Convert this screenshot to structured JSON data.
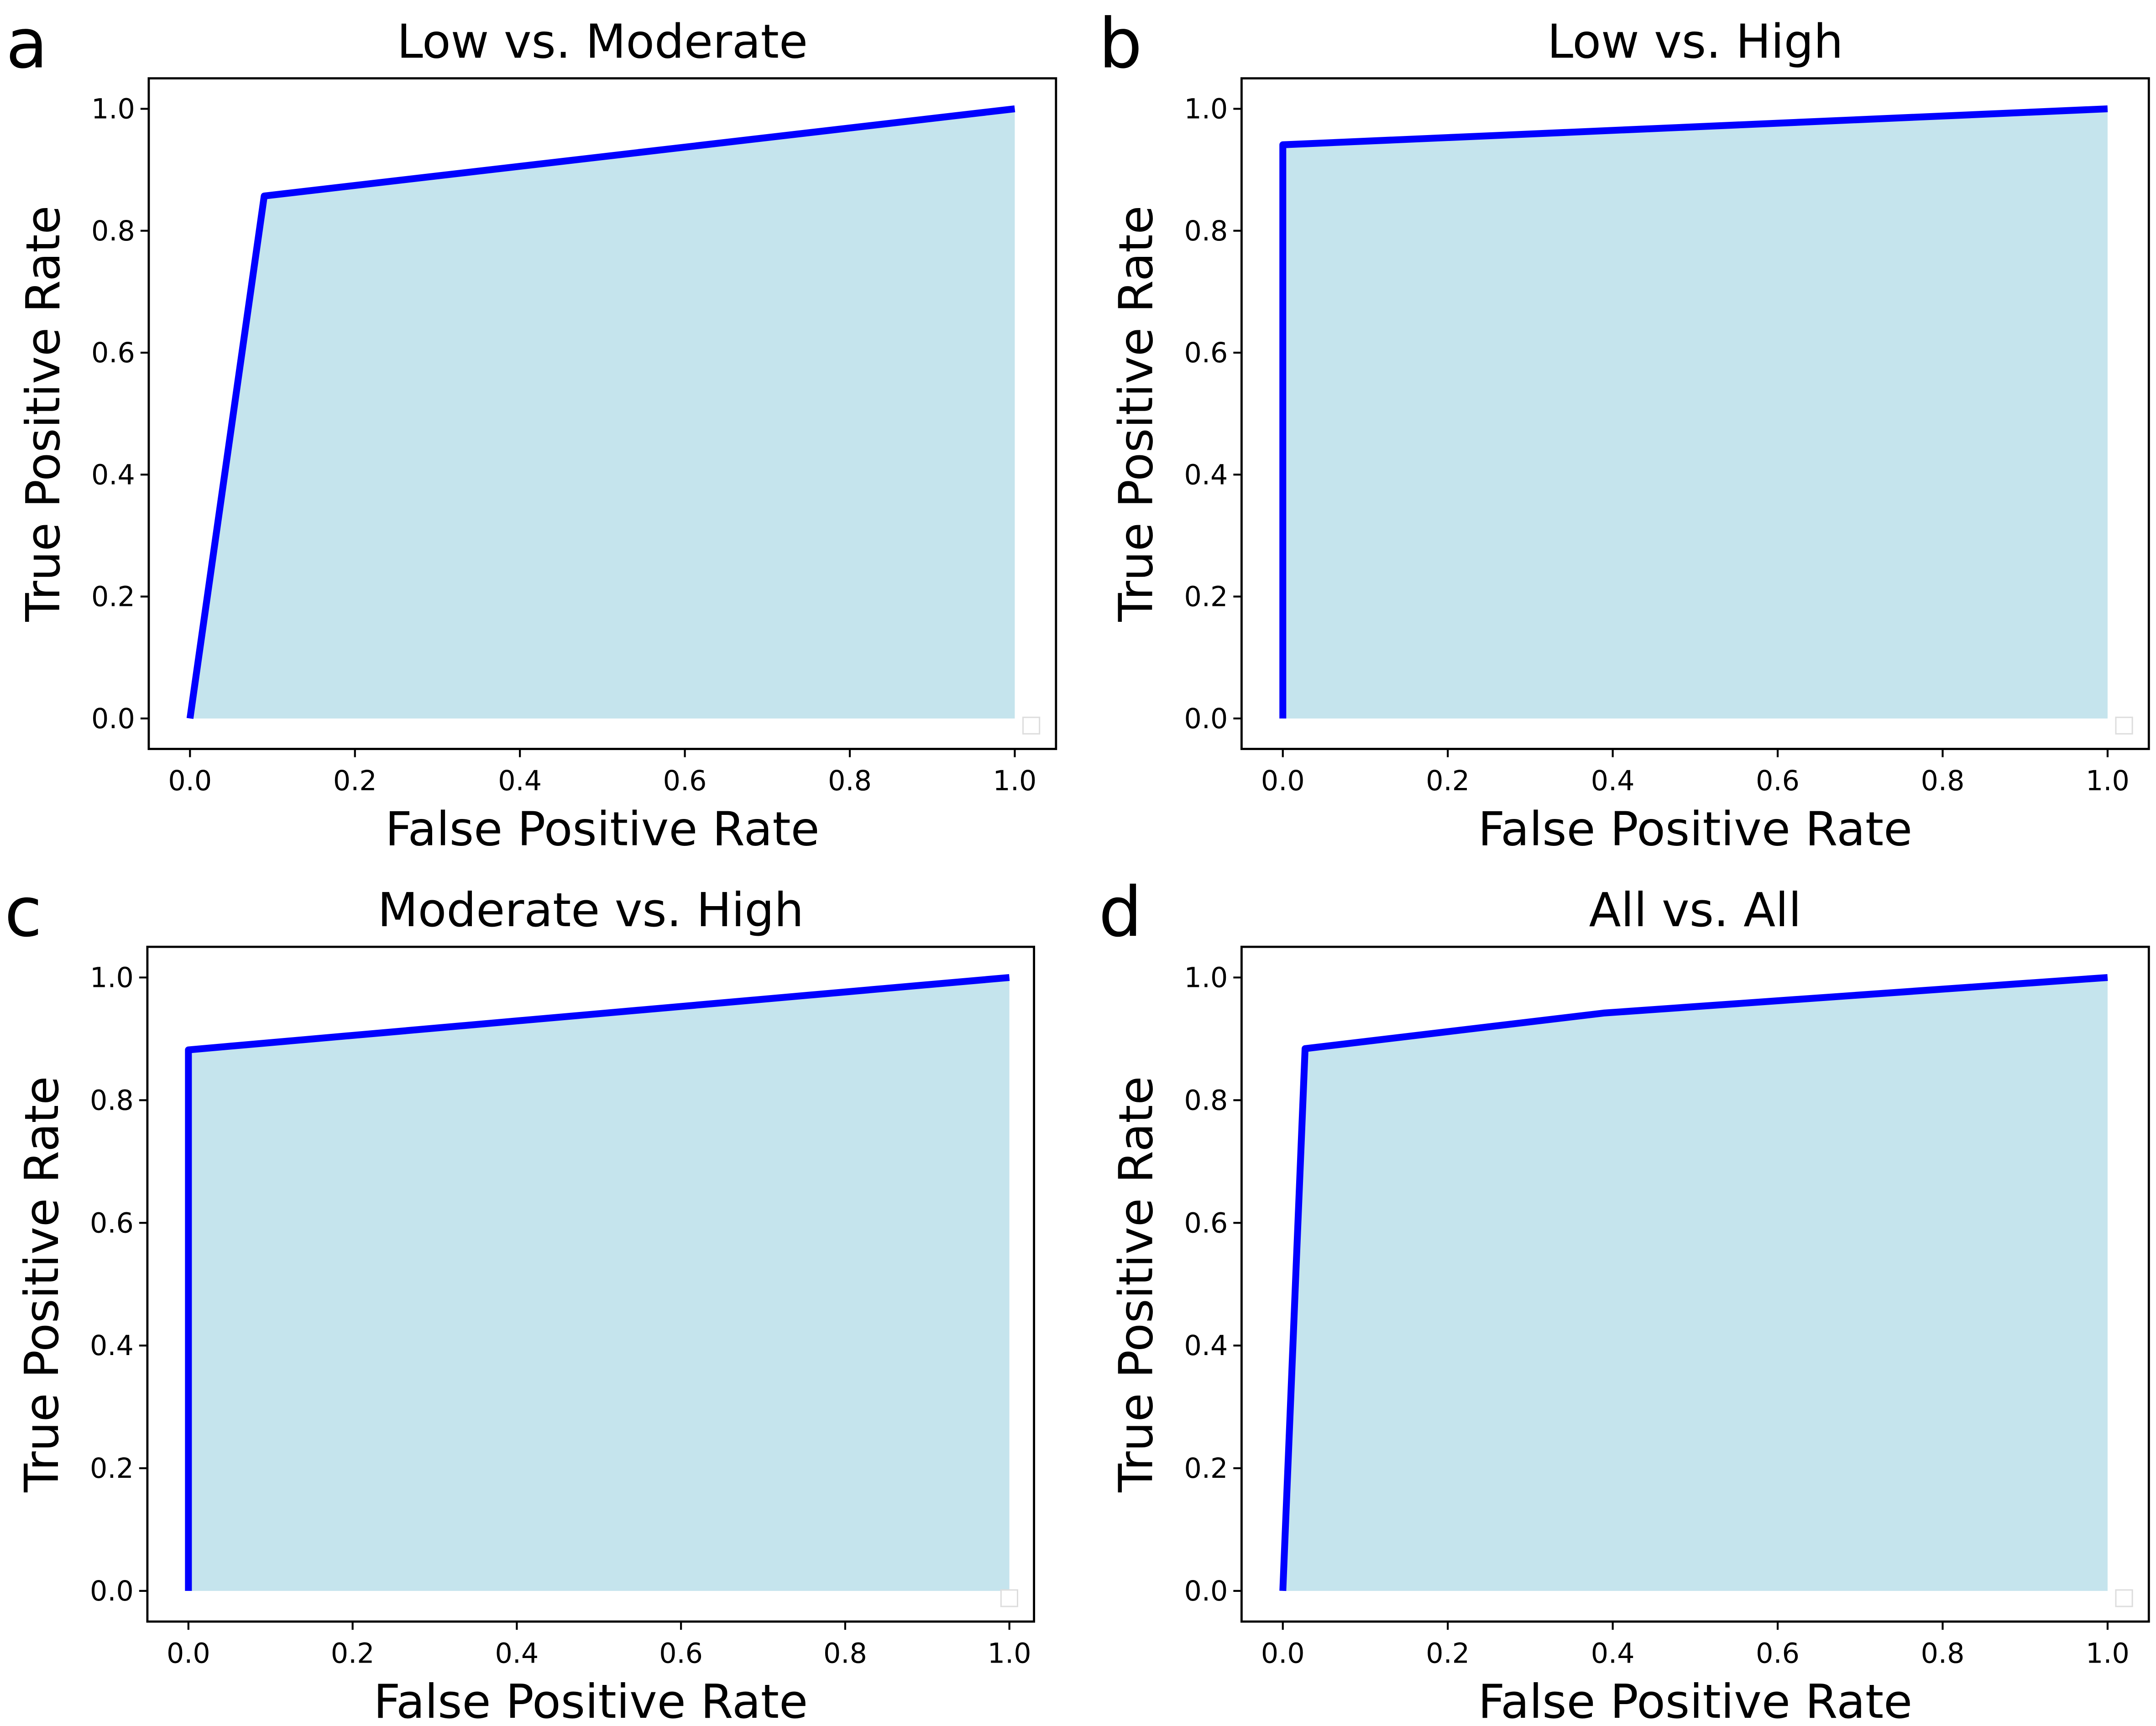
{
  "chart_data": [
    {
      "panel_label": "a",
      "type": "area",
      "title": "Low vs. Moderate",
      "xlabel": "False Positive Rate",
      "ylabel": "True Positive Rate",
      "x": [
        0.0,
        0.09,
        1.0
      ],
      "y": [
        0.0,
        0.857,
        1.0
      ],
      "xlim": [
        -0.05,
        1.05
      ],
      "ylim": [
        -0.05,
        1.05
      ],
      "xticks": [
        "0.0",
        "0.2",
        "0.4",
        "0.6",
        "0.8",
        "1.0"
      ],
      "yticks": [
        "0.0",
        "0.2",
        "0.4",
        "0.6",
        "0.8",
        "1.0"
      ],
      "grid": false,
      "legend": "bottom-right (empty)",
      "line_color": "#0000ff",
      "fill_color": "#add8e6"
    },
    {
      "panel_label": "b",
      "type": "area",
      "title": "Low vs. High",
      "xlabel": "False Positive Rate",
      "ylabel": "True Positive Rate",
      "x": [
        0.0,
        0.0,
        1.0
      ],
      "y": [
        0.0,
        0.941,
        1.0
      ],
      "xlim": [
        -0.05,
        1.05
      ],
      "ylim": [
        -0.05,
        1.05
      ],
      "xticks": [
        "0.0",
        "0.2",
        "0.4",
        "0.6",
        "0.8",
        "1.0"
      ],
      "yticks": [
        "0.0",
        "0.2",
        "0.4",
        "0.6",
        "0.8",
        "1.0"
      ],
      "grid": false,
      "legend": "bottom-right (empty)",
      "line_color": "#0000ff",
      "fill_color": "#add8e6"
    },
    {
      "panel_label": "c",
      "type": "area",
      "title": "Moderate vs. High",
      "xlabel": "False Positive Rate",
      "ylabel": "True Positive Rate",
      "x": [
        0.0,
        0.0,
        1.0
      ],
      "y": [
        0.0,
        0.882,
        1.0
      ],
      "xlim": [
        -0.05,
        1.03
      ],
      "ylim": [
        -0.05,
        1.05
      ],
      "xticks": [
        "0.0",
        "0.2",
        "0.4",
        "0.6",
        "0.8",
        "1.0"
      ],
      "yticks": [
        "0.0",
        "0.2",
        "0.4",
        "0.6",
        "0.8",
        "1.0"
      ],
      "grid": false,
      "legend": "bottom-right (empty)",
      "line_color": "#0000ff",
      "fill_color": "#add8e6"
    },
    {
      "panel_label": "d",
      "type": "area",
      "title": "All vs. All",
      "xlabel": "False Positive Rate",
      "ylabel": "True Positive Rate",
      "x": [
        0.0,
        0.027,
        0.389,
        1.0
      ],
      "y": [
        0.0,
        0.884,
        0.942,
        1.0
      ],
      "xlim": [
        -0.05,
        1.05
      ],
      "ylim": [
        -0.05,
        1.05
      ],
      "xticks": [
        "0.0",
        "0.2",
        "0.4",
        "0.6",
        "0.8",
        "1.0"
      ],
      "yticks": [
        "0.0",
        "0.2",
        "0.4",
        "0.6",
        "0.8",
        "1.0"
      ],
      "grid": false,
      "legend": "bottom-right (empty)",
      "line_color": "#0000ff",
      "fill_color": "#add8e6"
    }
  ]
}
